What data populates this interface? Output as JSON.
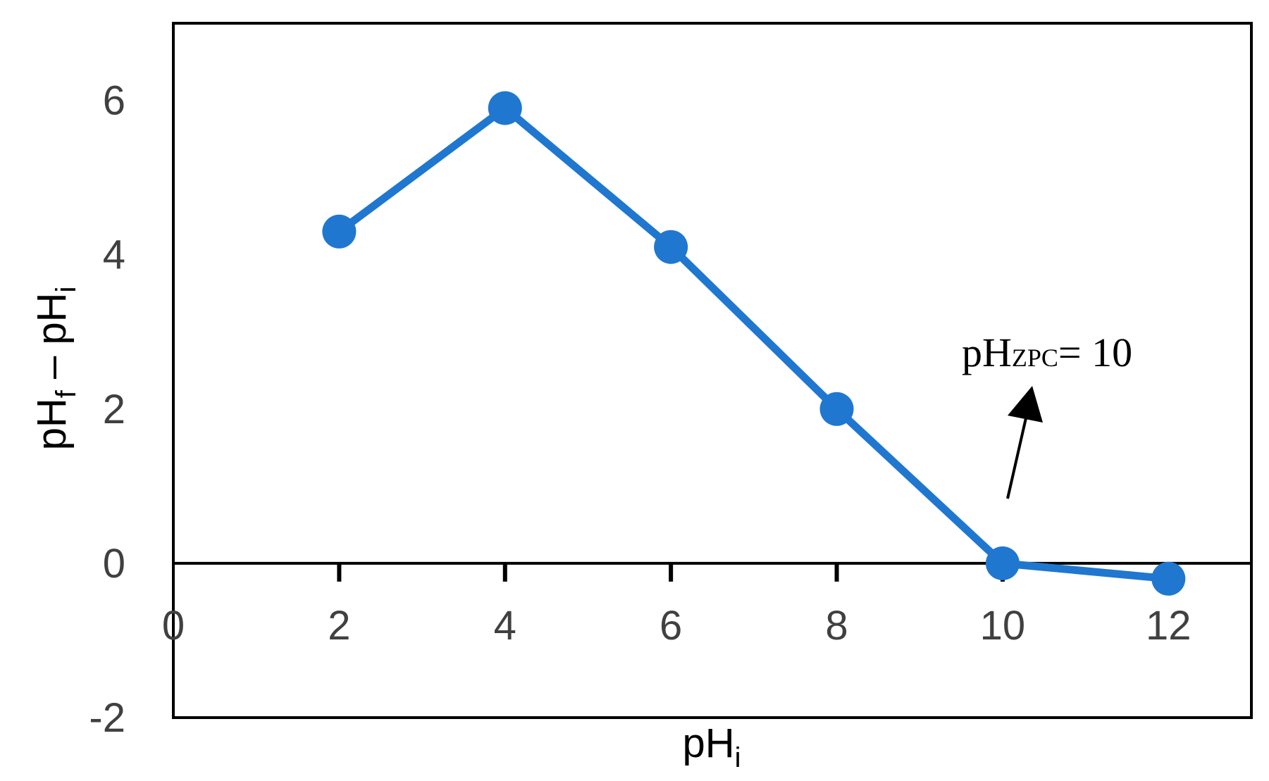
{
  "chart_data": {
    "type": "line",
    "x": [
      2,
      4,
      6,
      8,
      10,
      12
    ],
    "series": [
      {
        "values": [
          4.3,
          5.9,
          4.1,
          2.0,
          0.0,
          -0.2
        ],
        "color": "#1f77d0"
      }
    ],
    "xlabel": {
      "main": "pH",
      "sub": "i"
    },
    "ylabel": {
      "p1": "pH",
      "sub1": "f",
      "mid": " – pH",
      "sub2": "i"
    },
    "xlim": [
      0,
      13
    ],
    "ylim": [
      -2,
      7
    ],
    "x_ticks": [
      "0",
      "2",
      "4",
      "6",
      "8",
      "10",
      "12"
    ],
    "y_ticks": [
      "-2",
      "0",
      "2",
      "4",
      "6"
    ],
    "grid": false,
    "annotation": {
      "main": "pH",
      "sub": "ZPC",
      "rest": "= 10",
      "points_to_x": 10,
      "points_to_y": 0
    }
  }
}
